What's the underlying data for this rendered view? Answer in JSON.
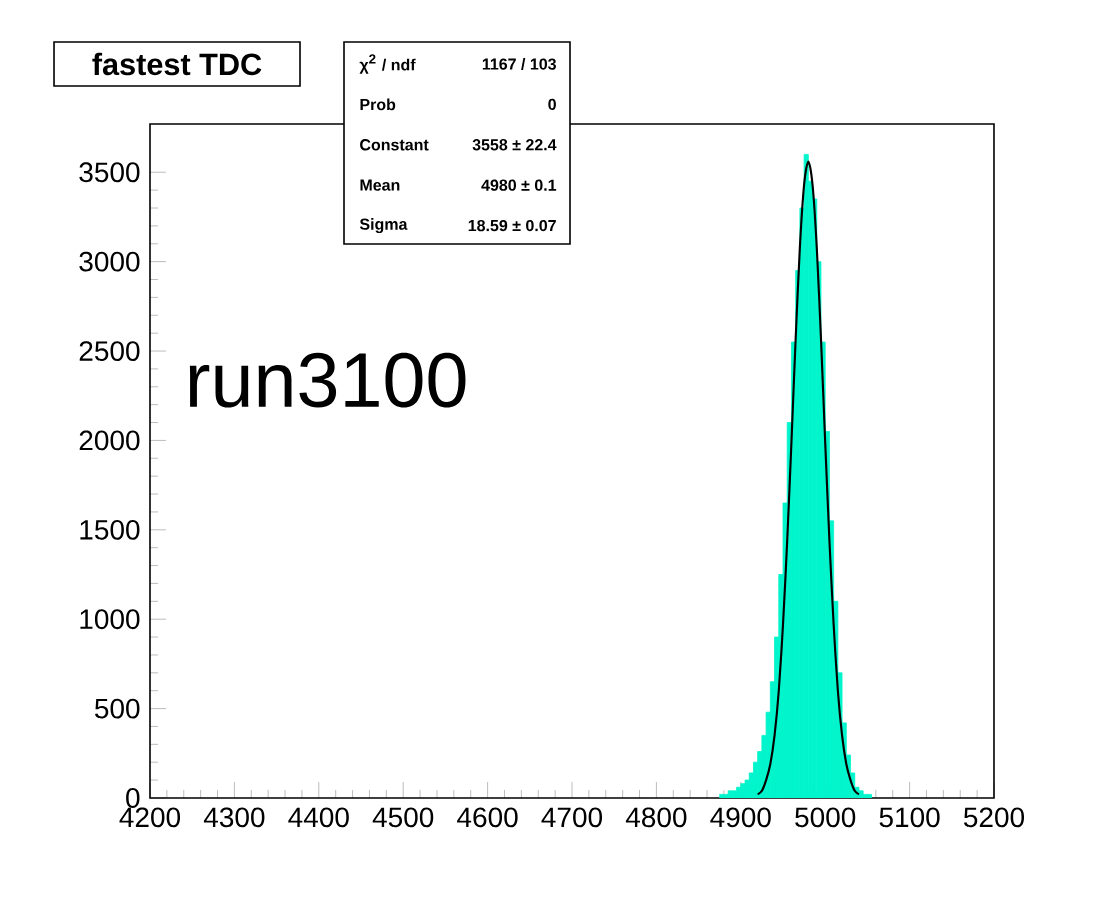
{
  "chart_data": {
    "type": "histogram",
    "title": "fastest TDC",
    "bins": [
      4875,
      4880,
      4885,
      4890,
      4895,
      4900,
      4905,
      4910,
      4915,
      4920,
      4925,
      4930,
      4935,
      4940,
      4945,
      4950,
      4955,
      4960,
      4965,
      4970,
      4975,
      4980,
      4985,
      4990,
      4995,
      5000,
      5005,
      5010,
      5015,
      5020,
      5025,
      5030,
      5035,
      5040,
      5045,
      5050,
      5055
    ],
    "values": [
      20,
      20,
      40,
      40,
      60,
      80,
      100,
      140,
      200,
      260,
      350,
      480,
      650,
      900,
      1250,
      1650,
      2100,
      2550,
      2950,
      3300,
      3600,
      3450,
      3350,
      3000,
      2550,
      2050,
      1550,
      1100,
      700,
      420,
      240,
      140,
      60,
      40,
      20,
      20
    ],
    "color": "#00f5cc",
    "series": [
      {
        "type": "line",
        "color": "#000000",
        "x": [
          4920,
          4925,
          4930,
          4935,
          4940,
          4945,
          4950,
          4955,
          4960,
          4965,
          4970,
          4975,
          4980,
          4985,
          4990,
          4995,
          5000,
          5005,
          5010,
          5015,
          5020,
          5025,
          5030,
          5035,
          5040
        ],
        "values": [
          20,
          40,
          100,
          190,
          350,
          600,
          970,
          1440,
          1990,
          2570,
          3080,
          3430,
          3560,
          3430,
          3080,
          2570,
          1990,
          1440,
          970,
          600,
          350,
          190,
          100,
          40,
          20
        ]
      }
    ],
    "xlim": [
      4200,
      5200
    ],
    "ylim": [
      0,
      3770
    ],
    "xticks": [
      4200,
      4300,
      4400,
      4500,
      4600,
      4700,
      4800,
      4900,
      5000,
      5100,
      5200
    ],
    "yticks": [
      0,
      500,
      1000,
      1500,
      2000,
      2500,
      3000,
      3500
    ],
    "annotations": [
      "χ$^{2}$ / ndf",
      "1167 / 103",
      "Prob",
      "0",
      "Constant",
      "3558  ± 22.4",
      "Mean",
      "4980  ± 0.1",
      "Sigma",
      "18.59  ± 0.07",
      "run3100"
    ],
    "grid": false
  }
}
